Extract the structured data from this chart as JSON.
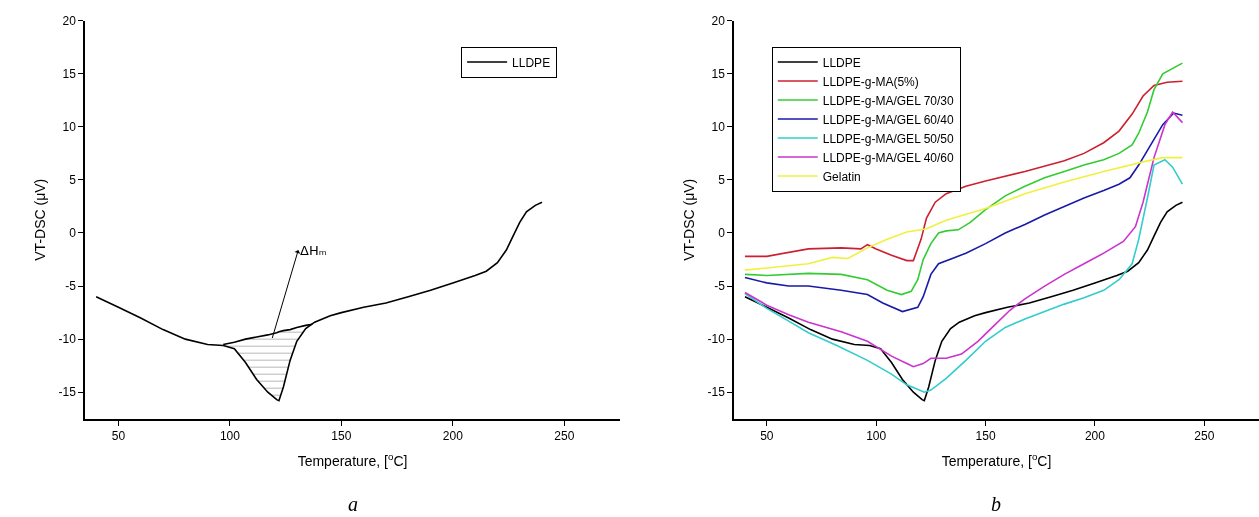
{
  "chart_data": [
    {
      "type": "line",
      "xlabel": "Temperature, [$^{o}$C]",
      "ylabel": "VT-DSC (μV)",
      "xlim": [
        35,
        275
      ],
      "ylim": [
        -17.5,
        20
      ],
      "xticks": [
        50,
        100,
        150,
        200,
        250
      ],
      "yticks": [
        -15,
        -10,
        -5,
        0,
        5,
        10,
        15,
        20
      ],
      "legend": "top right",
      "series": [
        {
          "name": "LLDPE",
          "color": "#000000",
          "x": [
            40,
            50,
            60,
            70,
            80,
            90,
            97,
            102,
            107,
            112,
            117,
            121,
            122,
            124,
            127,
            130,
            134,
            138,
            145,
            150,
            160,
            170,
            180,
            190,
            200,
            210,
            215,
            220,
            224,
            227,
            230,
            233,
            237,
            240
          ],
          "values": [
            -6.0,
            -7.0,
            -8.0,
            -9.1,
            -10.0,
            -10.5,
            -10.6,
            -10.9,
            -12.2,
            -13.8,
            -15.0,
            -15.7,
            -15.8,
            -14.5,
            -12.0,
            -10.2,
            -9.0,
            -8.4,
            -7.8,
            -7.5,
            -7.0,
            -6.6,
            -6.0,
            -5.4,
            -4.7,
            -4.0,
            -3.6,
            -2.8,
            -1.6,
            -0.3,
            1.0,
            2.0,
            2.6,
            2.9
          ]
        },
        {
          "color": "#000000",
          "x": [
            97,
            102,
            107,
            112,
            117,
            121,
            122,
            124,
            127,
            130,
            134,
            137
          ],
          "values": [
            -10.5,
            -10.3,
            -10.0,
            -9.8,
            -9.6,
            -9.4,
            -9.3,
            -9.2,
            -9.1,
            -8.9,
            -8.7,
            -8.6
          ],
          "upper": [
            -10.5,
            -10.3,
            -10.0,
            -9.8,
            -9.6,
            -9.4,
            -9.3,
            -9.2,
            -9.1,
            -8.9,
            -8.7,
            -8.6
          ],
          "lower": [
            -10.6,
            -10.9,
            -12.2,
            -13.8,
            -15.0,
            -15.7,
            -15.8,
            -14.5,
            -12.0,
            -10.2,
            -9.0,
            -8.6
          ]
        }
      ],
      "annotations": [
        {
          "text": "ΔHₘ",
          "x": 119,
          "y": -9.9
        },
        "a"
      ]
    },
    {
      "type": "line",
      "xlabel": "Temperature, [$^{o}$C]",
      "ylabel": "VT-DSC (μV)",
      "xlim": [
        35,
        275
      ],
      "ylim": [
        -17.5,
        20
      ],
      "xticks": [
        50,
        100,
        150,
        200,
        250
      ],
      "yticks": [
        -15,
        -10,
        -5,
        0,
        5,
        10,
        15,
        20
      ],
      "legend": "top left",
      "series": [
        {
          "name": "LLDPE",
          "color": "#000000",
          "x": [
            40,
            50,
            60,
            70,
            80,
            90,
            97,
            102,
            107,
            112,
            117,
            121,
            122,
            124,
            127,
            130,
            134,
            138,
            145,
            150,
            160,
            170,
            180,
            190,
            200,
            210,
            215,
            220,
            224,
            227,
            230,
            233,
            237,
            240
          ],
          "values": [
            -6.0,
            -7.0,
            -8.0,
            -9.1,
            -10.0,
            -10.5,
            -10.6,
            -10.9,
            -12.2,
            -13.8,
            -15.0,
            -15.7,
            -15.8,
            -14.5,
            -12.0,
            -10.2,
            -9.0,
            -8.4,
            -7.8,
            -7.5,
            -7.0,
            -6.6,
            -6.0,
            -5.4,
            -4.7,
            -4.0,
            -3.6,
            -2.8,
            -1.6,
            -0.3,
            1.0,
            2.0,
            2.6,
            2.9
          ]
        },
        {
          "name": "LLDPE-g-MA(5%)",
          "color": "#cc2030",
          "x": [
            40,
            50,
            69,
            84,
            93,
            96,
            100,
            107,
            114,
            117,
            120.5,
            123,
            127,
            132,
            141,
            150,
            168,
            186,
            195,
            204,
            211,
            217,
            222,
            227,
            233,
            240
          ],
          "values": [
            -2.2,
            -2.2,
            -1.5,
            -1.4,
            -1.5,
            -1.1,
            -1.5,
            -2.1,
            -2.6,
            -2.6,
            -0.6,
            1.4,
            2.9,
            3.7,
            4.4,
            4.9,
            5.8,
            6.8,
            7.5,
            8.5,
            9.6,
            11.2,
            12.9,
            13.9,
            14.2,
            14.3
          ]
        },
        {
          "name": "LLDPE-g-MA/GEL 70/30",
          "color": "#33cc33",
          "x": [
            40,
            50,
            69,
            84,
            96,
            105,
            111.5,
            116,
            119,
            121.5,
            125,
            128.5,
            132,
            137.5,
            143,
            150,
            159,
            168,
            177,
            186,
            195,
            204,
            211,
            217,
            220,
            224,
            227,
            231,
            240
          ],
          "values": [
            -3.9,
            -4.0,
            -3.8,
            -3.9,
            -4.4,
            -5.4,
            -5.8,
            -5.5,
            -4.4,
            -2.5,
            -1.0,
            0.0,
            0.2,
            0.3,
            1.0,
            2.2,
            3.5,
            4.4,
            5.2,
            5.8,
            6.4,
            6.9,
            7.5,
            8.3,
            9.4,
            11.4,
            13.5,
            15.0,
            16.0
          ]
        },
        {
          "name": "LLDPE-g-MA/GEL 60/40",
          "color": "#1a1aa8",
          "x": [
            40,
            50,
            60,
            69,
            84,
            96,
            103,
            112,
            119,
            121.5,
            125,
            128.5,
            136,
            141,
            150,
            159,
            168,
            177,
            186,
            195,
            204,
            211,
            216,
            220,
            225.5,
            231,
            236,
            240
          ],
          "values": [
            -4.2,
            -4.7,
            -5.0,
            -5.0,
            -5.4,
            -5.8,
            -6.6,
            -7.4,
            -7.0,
            -6.0,
            -3.9,
            -2.9,
            -2.3,
            -1.9,
            -1.0,
            0.0,
            0.8,
            1.7,
            2.5,
            3.3,
            4.0,
            4.6,
            5.2,
            6.4,
            8.3,
            10.2,
            11.3,
            11.1
          ]
        },
        {
          "name": "LLDPE-g-MA/GEL 50/50",
          "color": "#33cccc",
          "x": [
            40,
            50,
            60,
            69,
            82,
            96,
            107,
            114,
            122,
            125,
            132,
            141,
            150,
            159,
            168,
            177,
            186,
            195,
            204,
            211,
            217,
            220,
            224,
            227,
            232,
            235.5,
            240
          ],
          "values": [
            -5.7,
            -7.1,
            -8.3,
            -9.4,
            -10.6,
            -12.0,
            -13.3,
            -14.3,
            -15.0,
            -14.8,
            -13.7,
            -12.0,
            -10.2,
            -8.9,
            -8.1,
            -7.4,
            -6.7,
            -6.1,
            -5.4,
            -4.4,
            -2.9,
            -0.6,
            3.3,
            6.4,
            6.9,
            6.2,
            4.6
          ]
        },
        {
          "name": "LLDPE-g-MA/GEL 40/60",
          "color": "#cc33cc",
          "x": [
            40,
            50,
            60,
            69,
            84,
            96,
            107,
            114,
            117,
            121.5,
            125,
            132,
            139,
            146.5,
            154,
            161,
            168,
            177,
            186,
            195,
            204,
            213,
            218.5,
            222,
            227,
            232,
            235.5,
            240
          ],
          "values": [
            -5.6,
            -6.8,
            -7.7,
            -8.4,
            -9.3,
            -10.2,
            -11.6,
            -12.3,
            -12.6,
            -12.3,
            -11.8,
            -11.8,
            -11.4,
            -10.2,
            -8.7,
            -7.3,
            -6.2,
            -5.0,
            -3.9,
            -2.9,
            -1.9,
            -0.8,
            0.6,
            2.9,
            7.1,
            10.2,
            11.4,
            10.4
          ]
        },
        {
          "name": "Gelatin",
          "color": "#f0f040",
          "x": [
            40,
            50,
            69,
            80,
            87,
            96,
            105,
            114,
            123,
            132,
            150,
            168,
            186,
            204,
            222,
            231,
            240
          ],
          "values": [
            -3.5,
            -3.3,
            -2.9,
            -2.3,
            -2.4,
            -1.4,
            -0.6,
            0.1,
            0.4,
            1.2,
            2.3,
            3.7,
            4.8,
            5.8,
            6.7,
            7.1,
            7.1
          ]
        }
      ],
      "annotations": [
        "b"
      ]
    }
  ]
}
